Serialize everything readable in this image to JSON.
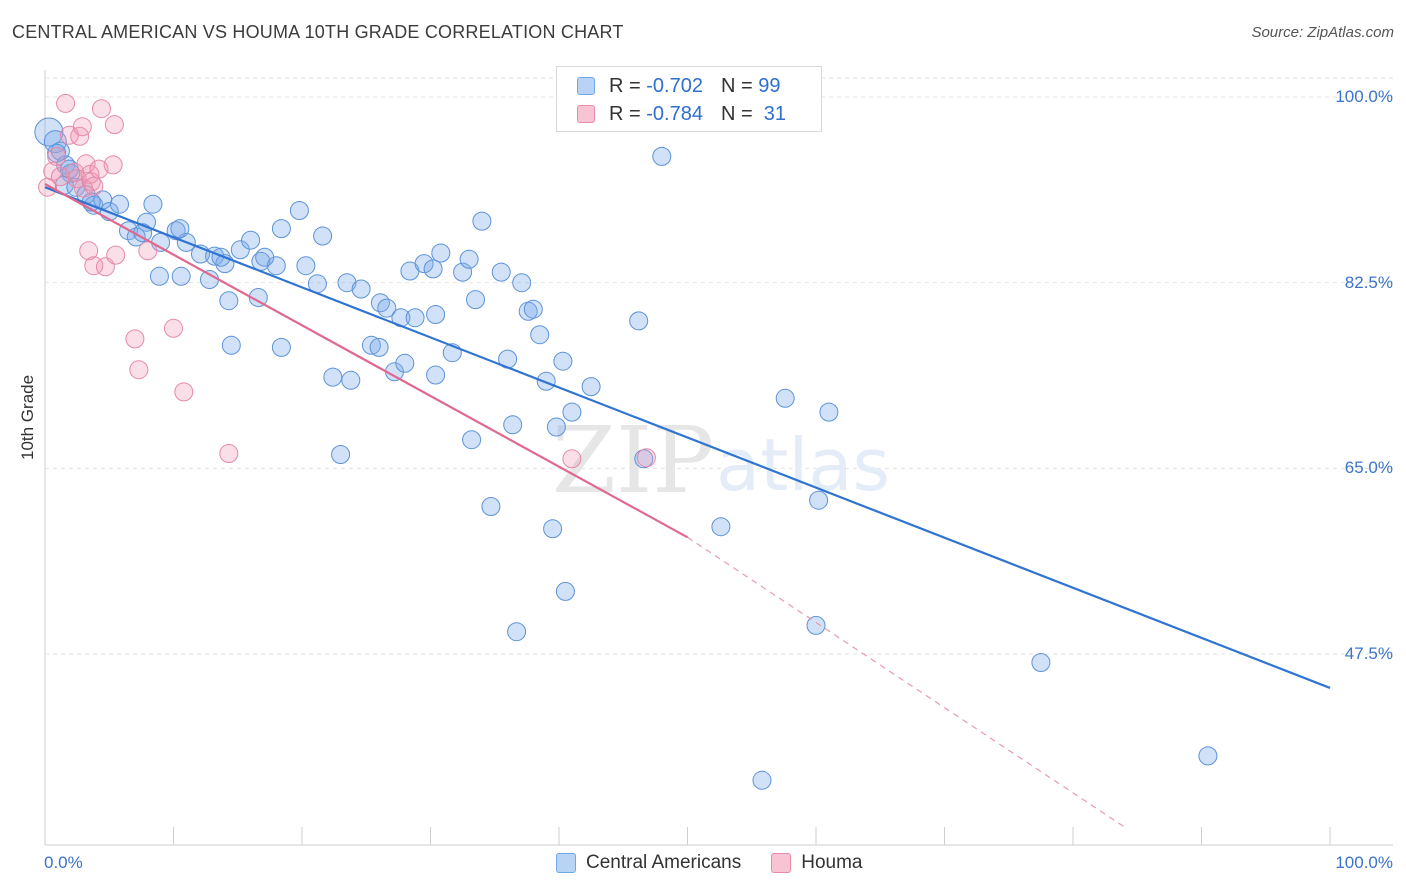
{
  "header": {
    "title": "CENTRAL AMERICAN VS HOUMA 10TH GRADE CORRELATION CHART",
    "source": "Source: ZipAtlas.com"
  },
  "watermark": {
    "zip": "ZIP",
    "atlas": "atlas"
  },
  "legend": {
    "r_label": "R =",
    "n_label": "N =",
    "rows": [
      {
        "r": "-0.702",
        "n": "99",
        "color": "#6fa8e8",
        "fill": "#b9d3f4"
      },
      {
        "r": "-0.784",
        "n": "31",
        "color": "#e88aa8",
        "fill": "#f6c4d3"
      }
    ]
  },
  "bottom_legend": [
    {
      "label": "Central Americans",
      "color": "#6fa8e8",
      "fill": "#b9d3f4"
    },
    {
      "label": "Houma",
      "color": "#e88aa8",
      "fill": "#f6c4d3"
    }
  ],
  "chart_data": {
    "type": "scatter",
    "title": "CENTRAL AMERICAN VS HOUMA 10TH GRADE CORRELATION CHART",
    "xlabel": "",
    "ylabel": "10th Grade",
    "xlim": [
      0,
      100
    ],
    "ylim": [
      31.0,
      102.5
    ],
    "x_tick_labels": [
      "0.0%",
      "100.0%"
    ],
    "y_ticks": [
      47.5,
      65.0,
      82.5,
      100.0
    ],
    "y_tick_labels": [
      "47.5%",
      "65.0%",
      "82.5%",
      "100.0%"
    ],
    "grid": true,
    "legend_position": "top-center",
    "series": [
      {
        "name": "Central Americans",
        "color": "#3a7bd5",
        "R": -0.702,
        "N": 99,
        "trend": {
          "x": [
            0,
            100
          ],
          "y": [
            91.5,
            44.3
          ]
        },
        "points": [
          [
            0.3,
            96.7
          ],
          [
            0.8,
            95.8
          ],
          [
            1.2,
            94.9
          ],
          [
            1.6,
            93.6
          ],
          [
            2.0,
            92.8
          ],
          [
            1.5,
            91.7
          ],
          [
            2.4,
            91.5
          ],
          [
            3.2,
            90.8
          ],
          [
            3.8,
            89.8
          ],
          [
            4.5,
            90.3
          ],
          [
            5.0,
            89.2
          ],
          [
            5.8,
            89.9
          ],
          [
            6.5,
            87.4
          ],
          [
            7.1,
            86.8
          ],
          [
            7.9,
            88.2
          ],
          [
            8.4,
            89.9
          ],
          [
            9.0,
            86.3
          ],
          [
            10.2,
            87.4
          ],
          [
            11.0,
            86.3
          ],
          [
            12.1,
            85.2
          ],
          [
            13.2,
            85.0
          ],
          [
            14.0,
            84.3
          ],
          [
            15.2,
            85.6
          ],
          [
            16.0,
            86.5
          ],
          [
            16.8,
            84.5
          ],
          [
            18.4,
            87.6
          ],
          [
            18.0,
            84.1
          ],
          [
            19.8,
            89.3
          ],
          [
            20.3,
            84.1
          ],
          [
            21.6,
            86.9
          ],
          [
            21.2,
            82.4
          ],
          [
            23.5,
            82.5
          ],
          [
            24.6,
            81.9
          ],
          [
            26.1,
            80.6
          ],
          [
            26.6,
            80.1
          ],
          [
            27.7,
            79.2
          ],
          [
            28.4,
            83.6
          ],
          [
            28.8,
            79.2
          ],
          [
            29.5,
            84.3
          ],
          [
            30.2,
            83.8
          ],
          [
            30.8,
            85.3
          ],
          [
            30.4,
            79.5
          ],
          [
            32.5,
            83.5
          ],
          [
            33.0,
            84.7
          ],
          [
            33.5,
            80.9
          ],
          [
            34.0,
            88.3
          ],
          [
            35.5,
            83.5
          ],
          [
            37.1,
            82.5
          ],
          [
            37.6,
            79.8
          ],
          [
            38.0,
            80.0
          ],
          [
            38.5,
            77.6
          ],
          [
            8.9,
            83.1
          ],
          [
            10.6,
            83.1
          ],
          [
            12.8,
            82.8
          ],
          [
            14.3,
            80.8
          ],
          [
            14.5,
            76.6
          ],
          [
            16.6,
            81.1
          ],
          [
            18.4,
            76.4
          ],
          [
            22.4,
            73.6
          ],
          [
            23.8,
            73.3
          ],
          [
            25.4,
            76.6
          ],
          [
            26.0,
            76.4
          ],
          [
            27.2,
            74.1
          ],
          [
            28.0,
            74.9
          ],
          [
            30.4,
            73.8
          ],
          [
            31.7,
            75.9
          ],
          [
            36.0,
            75.3
          ],
          [
            39.0,
            73.2
          ],
          [
            40.3,
            75.1
          ],
          [
            42.5,
            72.7
          ],
          [
            46.2,
            78.9
          ],
          [
            45.5,
            98.6
          ],
          [
            48.5,
            100.3
          ],
          [
            48.0,
            94.4
          ],
          [
            23.0,
            66.3
          ],
          [
            33.2,
            67.7
          ],
          [
            34.7,
            61.4
          ],
          [
            36.4,
            69.1
          ],
          [
            39.8,
            68.9
          ],
          [
            41.0,
            70.3
          ],
          [
            46.6,
            65.9
          ],
          [
            57.6,
            71.6
          ],
          [
            61.0,
            70.3
          ],
          [
            60.2,
            62.0
          ],
          [
            39.5,
            59.3
          ],
          [
            52.6,
            59.5
          ],
          [
            40.5,
            53.4
          ],
          [
            36.7,
            49.6
          ],
          [
            60.0,
            50.2
          ],
          [
            77.5,
            46.7
          ],
          [
            90.5,
            37.9
          ],
          [
            55.8,
            35.6
          ],
          [
            0.9,
            94.7
          ],
          [
            1.9,
            93.2
          ],
          [
            3.6,
            90.1
          ],
          [
            7.6,
            87.2
          ],
          [
            10.5,
            87.6
          ],
          [
            13.7,
            84.9
          ],
          [
            17.1,
            84.9
          ]
        ]
      },
      {
        "name": "Houma",
        "color": "#e06b92",
        "R": -0.784,
        "N": 31,
        "trend": {
          "x": [
            0,
            50.0
          ],
          "y": [
            91.8,
            58.5
          ]
        },
        "trend_dashed": {
          "x": [
            50.0,
            84.0
          ],
          "y": [
            58.5,
            31.2
          ]
        },
        "points": [
          [
            0.2,
            91.5
          ],
          [
            0.6,
            93.0
          ],
          [
            0.9,
            94.4
          ],
          [
            1.2,
            92.5
          ],
          [
            1.6,
            99.4
          ],
          [
            1.9,
            96.4
          ],
          [
            2.3,
            92.9
          ],
          [
            2.5,
            92.3
          ],
          [
            2.7,
            96.3
          ],
          [
            2.9,
            97.2
          ],
          [
            3.0,
            91.4
          ],
          [
            3.2,
            93.7
          ],
          [
            3.5,
            92.7
          ],
          [
            3.6,
            92.0
          ],
          [
            3.8,
            91.6
          ],
          [
            4.2,
            93.2
          ],
          [
            4.4,
            98.9
          ],
          [
            5.3,
            93.6
          ],
          [
            5.4,
            97.4
          ],
          [
            3.4,
            85.5
          ],
          [
            3.8,
            84.1
          ],
          [
            4.7,
            84.0
          ],
          [
            5.5,
            85.1
          ],
          [
            8.0,
            85.5
          ],
          [
            7.0,
            77.2
          ],
          [
            7.3,
            74.3
          ],
          [
            10.0,
            78.2
          ],
          [
            10.8,
            72.2
          ],
          [
            14.3,
            66.4
          ],
          [
            41.0,
            65.9
          ],
          [
            46.8,
            66.0
          ]
        ]
      }
    ]
  }
}
